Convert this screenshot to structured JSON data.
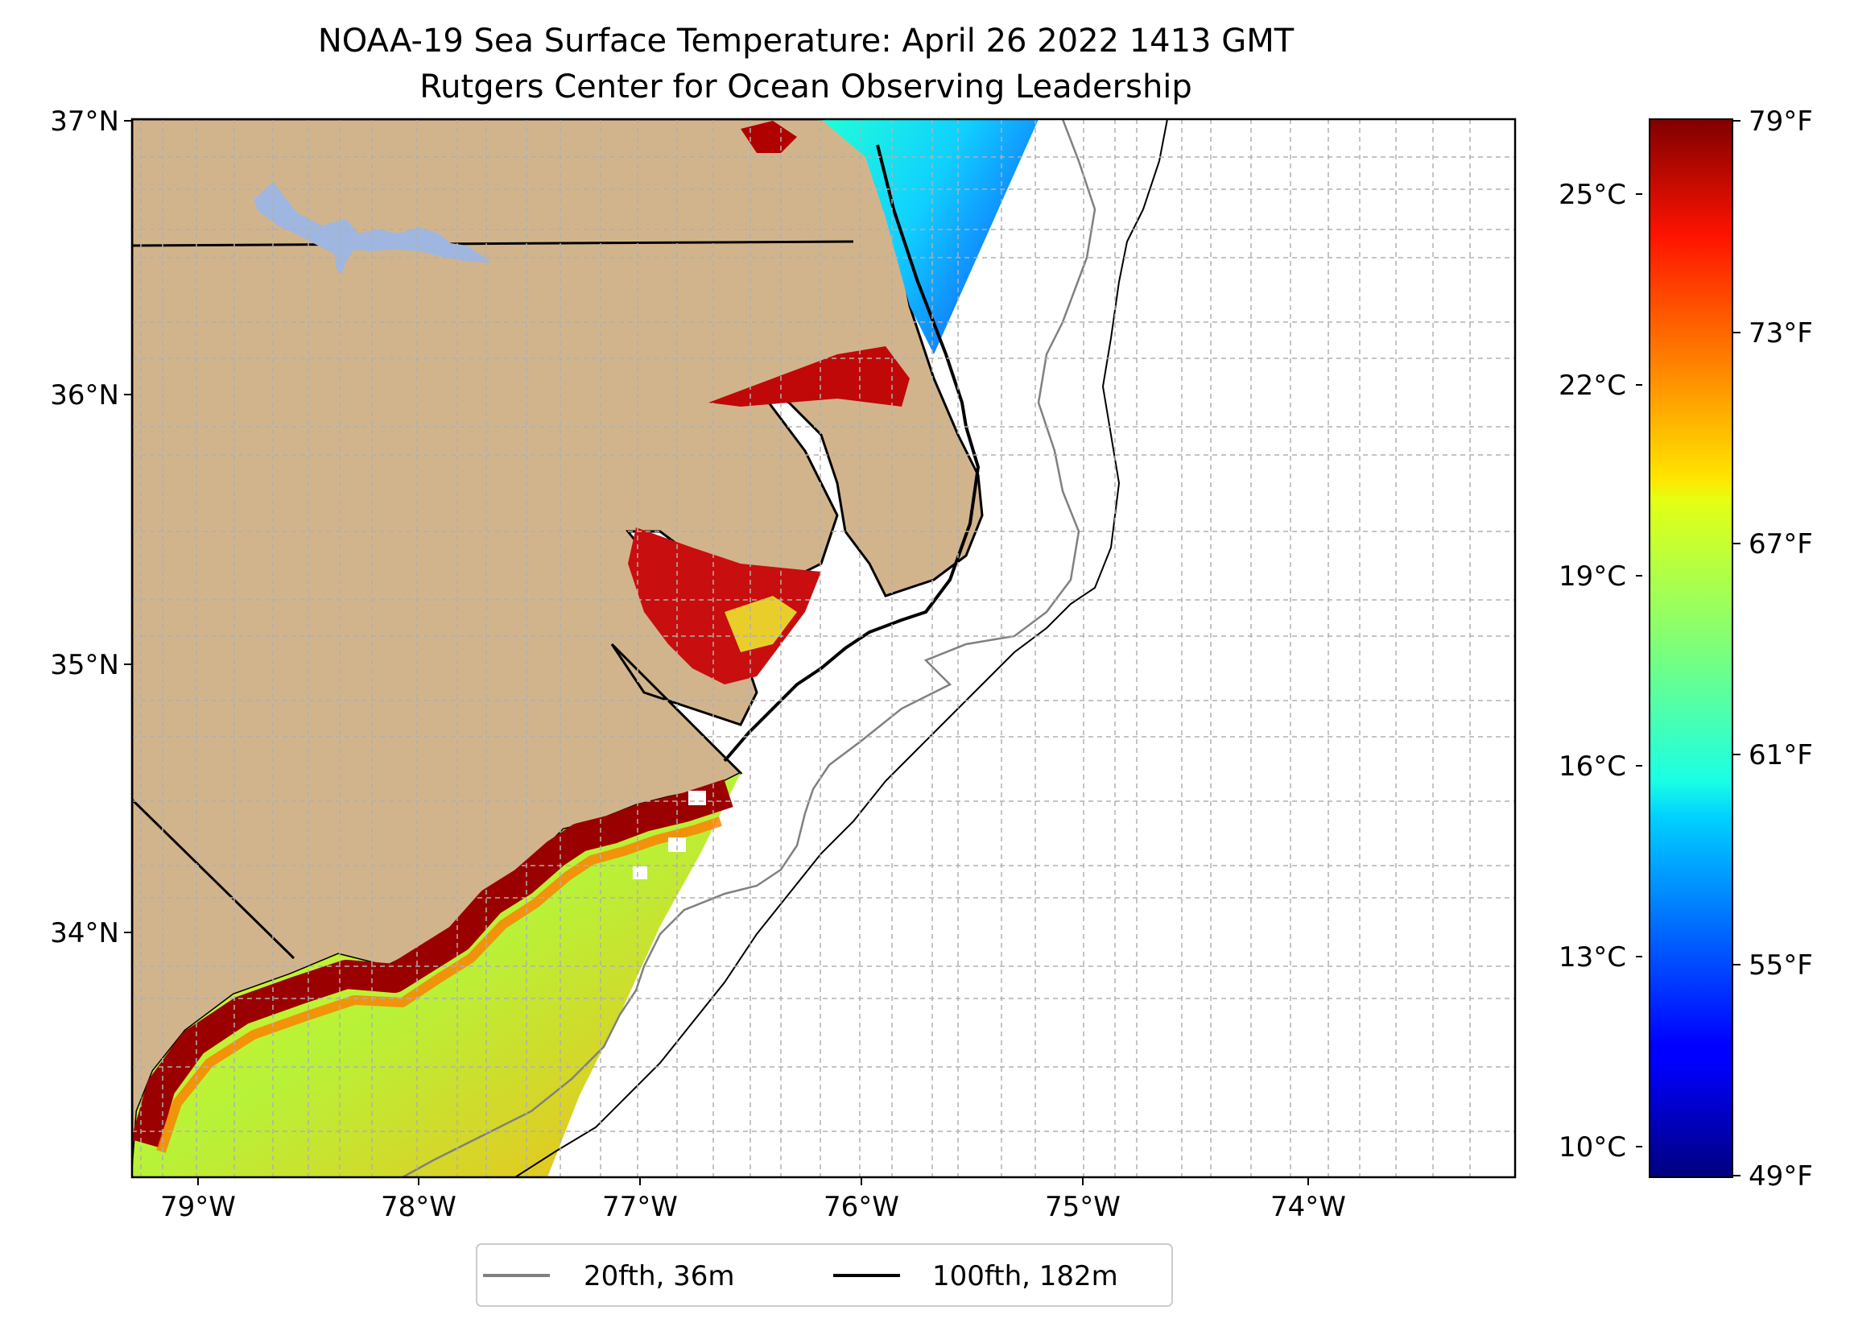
{
  "title_line1": "NOAA-19 Sea Surface Temperature: April 26 2022 1413 GMT",
  "title_line2": "Rutgers Center for Ocean Observing Leadership",
  "map": {
    "lon_range": [
      -79.3,
      -73.05
    ],
    "lat_range": [
      33.08,
      37.0
    ],
    "lon_ticks": [
      "79°W",
      "78°W",
      "77°W",
      "76°W",
      "75°W",
      "74°W"
    ],
    "lat_ticks": [
      "37°N",
      "36°N",
      "35°N",
      "34°N"
    ],
    "land_color": "#d2b48c",
    "lake_color": "#9fb6e0",
    "grid": true
  },
  "legend": {
    "items": [
      {
        "label": "20fth, 36m",
        "color": "#808080"
      },
      {
        "label": "100fth, 182m",
        "color": "#000000"
      }
    ]
  },
  "colorbar": {
    "colormap": "jet",
    "fahrenheit_ticks": [
      "79°F",
      "73°F",
      "67°F",
      "61°F",
      "55°F",
      "49°F"
    ],
    "celsius_ticks": [
      "25°C",
      "22°C",
      "19°C",
      "16°C",
      "13°C",
      "10°C"
    ],
    "range_f": [
      49,
      79
    ]
  }
}
